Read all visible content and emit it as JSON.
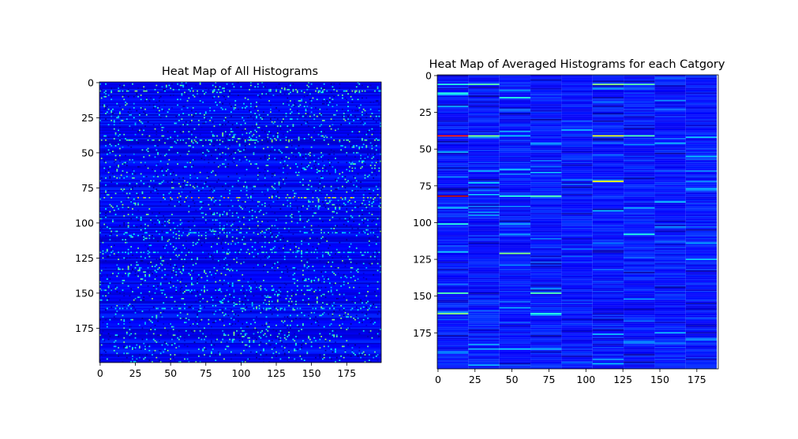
{
  "chart_data": [
    {
      "type": "heatmap",
      "title": "Heat Map of All Histograms",
      "colormap": "jet",
      "xlim": [
        -0.5,
        199.5
      ],
      "ylim": [
        199.5,
        -0.5
      ],
      "xticks": [
        0,
        25,
        50,
        75,
        100,
        125,
        150,
        175
      ],
      "yticks": [
        0,
        25,
        50,
        75,
        100,
        125,
        150,
        175
      ],
      "rows": 200,
      "cols": 200,
      "notable_rows": [
        {
          "row": 6,
          "intensity": 0.55
        },
        {
          "row": 41,
          "intensity": 0.55
        },
        {
          "row": 82,
          "intensity": 0.75
        },
        {
          "row": 107,
          "intensity": 0.45
        },
        {
          "row": 121,
          "intensity": 0.45
        },
        {
          "row": 148,
          "intensity": 0.45
        },
        {
          "row": 161,
          "intensity": 0.45
        }
      ]
    },
    {
      "type": "heatmap",
      "title": "Heat Map of Averaged Histograms for each Catgory",
      "colormap": "jet",
      "xlim": [
        -0.5,
        189.5
      ],
      "ylim": [
        199.5,
        -0.5
      ],
      "xticks": [
        0,
        25,
        50,
        75,
        100,
        125,
        150,
        175
      ],
      "yticks": [
        0,
        25,
        50,
        75,
        100,
        125,
        150,
        175
      ],
      "rows": 200,
      "categories": 9,
      "columns_per_category": 21,
      "notable_cells": [
        {
          "row": 6,
          "category": 0,
          "intensity": 0.4
        },
        {
          "row": 6,
          "category": 1,
          "intensity": 0.45
        },
        {
          "row": 6,
          "category": 5,
          "intensity": 0.5
        },
        {
          "row": 6,
          "category": 6,
          "intensity": 0.45
        },
        {
          "row": 12,
          "category": 0,
          "intensity": 0.4
        },
        {
          "row": 15,
          "category": 2,
          "intensity": 0.4
        },
        {
          "row": 41,
          "category": 0,
          "intensity": 0.85
        },
        {
          "row": 41,
          "category": 1,
          "intensity": 0.5
        },
        {
          "row": 41,
          "category": 5,
          "intensity": 0.6
        },
        {
          "row": 41,
          "category": 6,
          "intensity": 0.45
        },
        {
          "row": 72,
          "category": 5,
          "intensity": 0.62
        },
        {
          "row": 82,
          "category": 0,
          "intensity": 0.95
        },
        {
          "row": 82,
          "category": 2,
          "intensity": 0.4
        },
        {
          "row": 82,
          "category": 3,
          "intensity": 0.45
        },
        {
          "row": 101,
          "category": 0,
          "intensity": 0.4
        },
        {
          "row": 108,
          "category": 6,
          "intensity": 0.4
        },
        {
          "row": 121,
          "category": 2,
          "intensity": 0.5
        },
        {
          "row": 148,
          "category": 0,
          "intensity": 0.45
        },
        {
          "row": 148,
          "category": 3,
          "intensity": 0.45
        },
        {
          "row": 162,
          "category": 0,
          "intensity": 0.5
        },
        {
          "row": 162,
          "category": 3,
          "intensity": 0.4
        }
      ]
    }
  ]
}
